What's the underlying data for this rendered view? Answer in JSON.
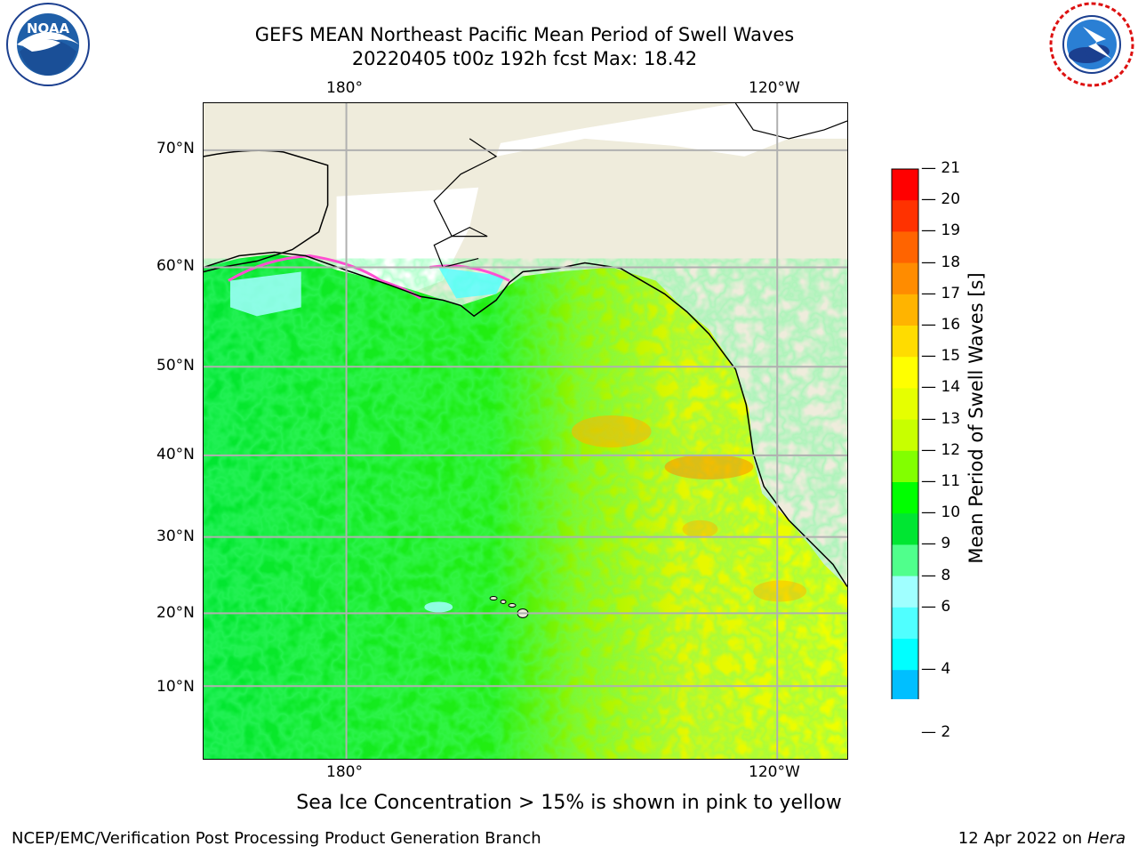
{
  "title": {
    "line1": "GEFS MEAN Northeast Pacific Mean Period of Swell Waves",
    "line2": "20220405 t00z 192h fcst   Max: 18.42"
  },
  "logos": {
    "left": {
      "icon": "noaa-logo",
      "text": "NOAA"
    },
    "right": {
      "icon": "national-weather-service-logo"
    }
  },
  "map": {
    "top_lon_labels": [
      "180°",
      "120°W"
    ],
    "bottom_lon_labels": [
      "180°",
      "120°W"
    ],
    "lat_labels": [
      "70°N",
      "60°N",
      "50°N",
      "40°N",
      "30°N",
      "20°N",
      "10°N"
    ]
  },
  "colorbar": {
    "title": "Mean Period of Swell Waves [s]",
    "ticks": [
      "21",
      "20",
      "19",
      "18",
      "17",
      "16",
      "15",
      "14",
      "13",
      "12",
      "11",
      "10",
      "9",
      "8",
      "6",
      "4",
      "2"
    ],
    "colors": [
      "#ff0000",
      "#ff3200",
      "#ff6400",
      "#ff8c00",
      "#ffb400",
      "#ffdc00",
      "#ffff00",
      "#e6ff00",
      "#c8ff00",
      "#82ff00",
      "#00ff00",
      "#00e632",
      "#50ff8c",
      "#a0ffff",
      "#50ffff",
      "#00ffff",
      "#00bfff",
      "#0064ff"
    ],
    "extend_color": "#0000ff"
  },
  "footer": {
    "note": "Sea Ice Concentration > 15% is shown in pink to yellow",
    "credit": "NCEP/EMC/Verification Post Processing Product Generation Branch",
    "date": "12 Apr 2022 on",
    "system": "Hera"
  }
}
